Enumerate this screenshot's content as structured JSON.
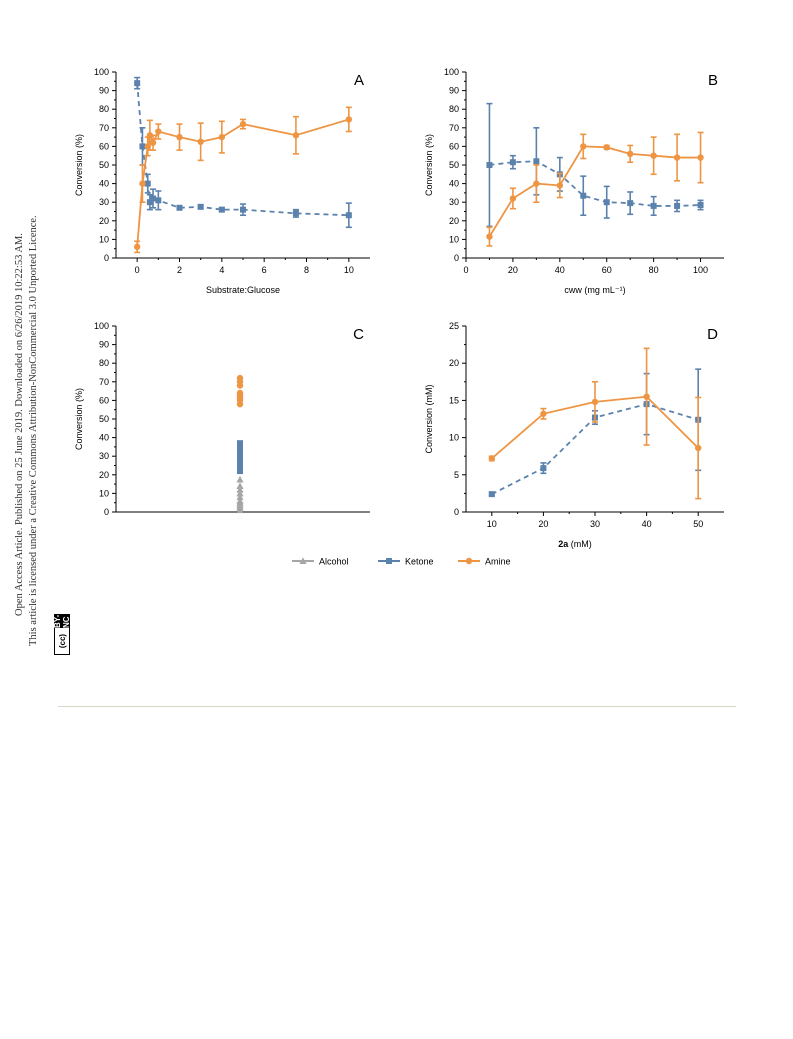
{
  "sidebar": {
    "line1": "Open Access Article. Published on 25 June 2019. Downloaded on 6/26/2019 10:22:53 AM.",
    "line2": "This article is licensed under a Creative Commons Attribution-NonCommercial 3.0 Unported Licence.",
    "badge_left": "(cc)",
    "badge_right": "BY-NC"
  },
  "colors": {
    "alcohol": "#a6a6a6",
    "ketone": "#5b82ad",
    "amine": "#ee9544",
    "axis": "#000000"
  },
  "legend": [
    {
      "name": "Alcohol",
      "marker": "triangle",
      "color": "#a6a6a6"
    },
    {
      "name": "Ketone",
      "marker": "square",
      "color": "#5b82ad"
    },
    {
      "name": "Amine",
      "marker": "circle",
      "color": "#ee9544"
    }
  ],
  "chart_data": [
    {
      "panel": "A",
      "type": "line",
      "xlabel": "Substrate:Glucose",
      "ylabel": "Conversion (%)",
      "xlim": [
        -1,
        11
      ],
      "ylim": [
        0,
        100
      ],
      "xticks": [
        0,
        2,
        4,
        6,
        8,
        10
      ],
      "yticks": [
        0,
        10,
        20,
        30,
        40,
        50,
        60,
        70,
        80,
        90,
        100
      ],
      "series": [
        {
          "name": "Ketone",
          "style": "dashed",
          "marker": "square",
          "x": [
            0,
            0.25,
            0.5,
            0.6,
            0.75,
            1,
            2,
            3,
            4,
            5,
            7.5,
            10
          ],
          "y": [
            94,
            60,
            40,
            30,
            32,
            31,
            27,
            27.5,
            26,
            26,
            24,
            23
          ],
          "err": [
            3,
            10,
            5,
            4,
            5,
            5,
            1,
            1,
            1,
            3,
            2,
            6.5
          ]
        },
        {
          "name": "Amine",
          "style": "solid",
          "marker": "circle",
          "x": [
            0,
            0.25,
            0.5,
            0.6,
            0.75,
            1,
            2,
            3,
            4,
            5,
            7.5,
            10
          ],
          "y": [
            6,
            40,
            60,
            66,
            62,
            68,
            65,
            62.5,
            65,
            72,
            66,
            74.5
          ],
          "err": [
            3,
            10,
            5,
            8,
            4,
            4,
            7,
            10,
            8.5,
            2.5,
            10,
            6.5
          ]
        }
      ]
    },
    {
      "panel": "B",
      "type": "line",
      "xlabel": "cww (mg mL⁻¹)",
      "ylabel": "Conversion (%)",
      "xlim": [
        0,
        110
      ],
      "ylim": [
        0,
        100
      ],
      "xticks": [
        0,
        20,
        40,
        60,
        80,
        100
      ],
      "yticks": [
        0,
        10,
        20,
        30,
        40,
        50,
        60,
        70,
        80,
        90,
        100
      ],
      "series": [
        {
          "name": "Ketone",
          "style": "dashed",
          "marker": "square",
          "x": [
            10,
            20,
            30,
            40,
            50,
            60,
            70,
            80,
            90,
            100
          ],
          "y": [
            50,
            51.5,
            52,
            45,
            33.5,
            30,
            29.5,
            28,
            28,
            28.5
          ],
          "err": [
            33,
            3.5,
            18,
            9,
            10.5,
            8.5,
            6,
            5,
            3,
            2.5
          ]
        },
        {
          "name": "Amine",
          "style": "solid",
          "marker": "circle",
          "x": [
            10,
            20,
            30,
            40,
            50,
            60,
            70,
            80,
            90,
            100
          ],
          "y": [
            11.5,
            32,
            40,
            39,
            60,
            59.5,
            56,
            55,
            54,
            54
          ],
          "err": [
            5,
            5.5,
            10,
            6.5,
            6.5,
            1,
            4.5,
            10,
            12.5,
            13.5
          ]
        }
      ]
    },
    {
      "panel": "C",
      "type": "scatter",
      "xlabel": "",
      "ylabel": "Conversion (%)",
      "ylim": [
        0,
        100
      ],
      "yticks": [
        0,
        10,
        20,
        30,
        40,
        50,
        60,
        70,
        80,
        90,
        100
      ],
      "series": [
        {
          "name": "Alcohol",
          "marker": "triangle",
          "y": [
            1,
            2,
            3,
            4,
            5,
            6,
            8,
            10,
            12,
            14,
            17.5
          ]
        },
        {
          "name": "Ketone",
          "marker": "square",
          "y": [
            22,
            25,
            27,
            28,
            30,
            31,
            32,
            33,
            34,
            35,
            37
          ]
        },
        {
          "name": "Amine",
          "marker": "circle",
          "y": [
            58,
            60,
            61,
            62,
            63,
            64,
            68,
            70,
            72
          ]
        }
      ]
    },
    {
      "panel": "D",
      "type": "line",
      "xlabel": "2a (mM)",
      "xlabel_bold": "2a",
      "xlabel_rest": " (mM)",
      "ylabel": "Conversion (mM)",
      "xlim": [
        5,
        55
      ],
      "ylim": [
        0,
        25
      ],
      "xticks": [
        10,
        20,
        30,
        40,
        50
      ],
      "yticks": [
        0,
        5,
        10,
        15,
        20,
        25
      ],
      "series": [
        {
          "name": "Ketone",
          "style": "dashed",
          "marker": "square",
          "x": [
            10,
            20,
            30,
            40,
            50
          ],
          "y": [
            2.4,
            5.9,
            12.7,
            14.5,
            12.4
          ],
          "err": [
            0.2,
            0.7,
            0.9,
            4.1,
            6.8
          ]
        },
        {
          "name": "Amine",
          "style": "solid",
          "marker": "circle",
          "x": [
            10,
            20,
            30,
            40,
            50
          ],
          "y": [
            7.2,
            13.2,
            14.8,
            15.5,
            8.6
          ],
          "err": [
            0.3,
            0.7,
            2.7,
            6.5,
            6.8
          ]
        }
      ]
    }
  ]
}
